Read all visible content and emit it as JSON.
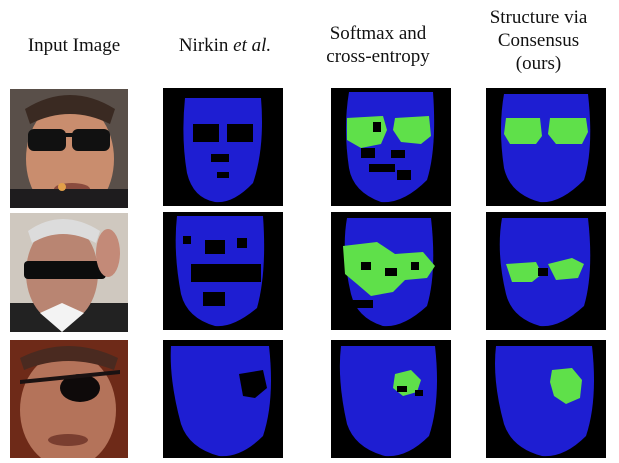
{
  "columns": {
    "input": {
      "line1": "Input Image"
    },
    "nirkin": {
      "line1_plain": "Nirkin ",
      "line1_italic": "et al."
    },
    "softmax": {
      "line1": "Softmax and",
      "line2": "cross-entropy"
    },
    "ours": {
      "line1": "Structure via",
      "line2": "Consensus",
      "line3": "(ours)"
    }
  },
  "colors": {
    "background_mask": "#000000",
    "face_class": "#1e1ed2",
    "occlusion_class": "#5fe04a"
  }
}
